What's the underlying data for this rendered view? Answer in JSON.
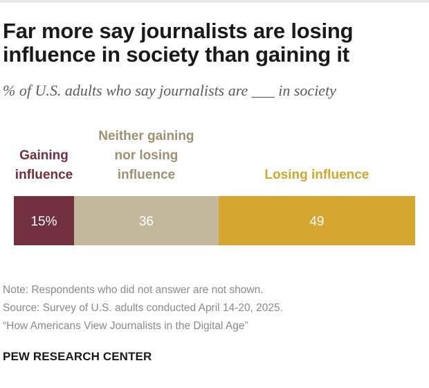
{
  "header": {
    "title": "Far more say journalists are losing influence in society than gaining it",
    "subtitle": "% of U.S. adults who say journalists are ___ in society"
  },
  "chart_data": {
    "type": "bar",
    "orientation": "horizontal-stacked",
    "categories": [
      "Gaining influence",
      "Neither gaining nor losing influence",
      "Losing influence"
    ],
    "category_label_lines": [
      [
        "Gaining",
        "influence"
      ],
      [
        "Neither gaining",
        "nor losing",
        "influence"
      ],
      [
        "Losing influence"
      ]
    ],
    "values": [
      15,
      36,
      49
    ],
    "value_labels": [
      "15%",
      "36",
      "49"
    ],
    "unit": "%",
    "title": "Far more say journalists are losing influence in society than gaining it",
    "xlabel": "",
    "ylabel": "",
    "xlim": [
      0,
      100
    ],
    "legend": "none",
    "grid": false,
    "colors": [
      "#722f3d",
      "#c2b89c",
      "#d4a52f"
    ],
    "label_colors": [
      "#722f3d",
      "#9c9171",
      "#d4a52f"
    ]
  },
  "notes": {
    "note": "Note: Respondents who did not answer are not shown.",
    "source": "Source: Survey of U.S. adults conducted April 14-20, 2025.",
    "report": "“How Americans View Journalists in the Digital Age”"
  },
  "brand": {
    "name": "PEW RESEARCH CENTER"
  }
}
